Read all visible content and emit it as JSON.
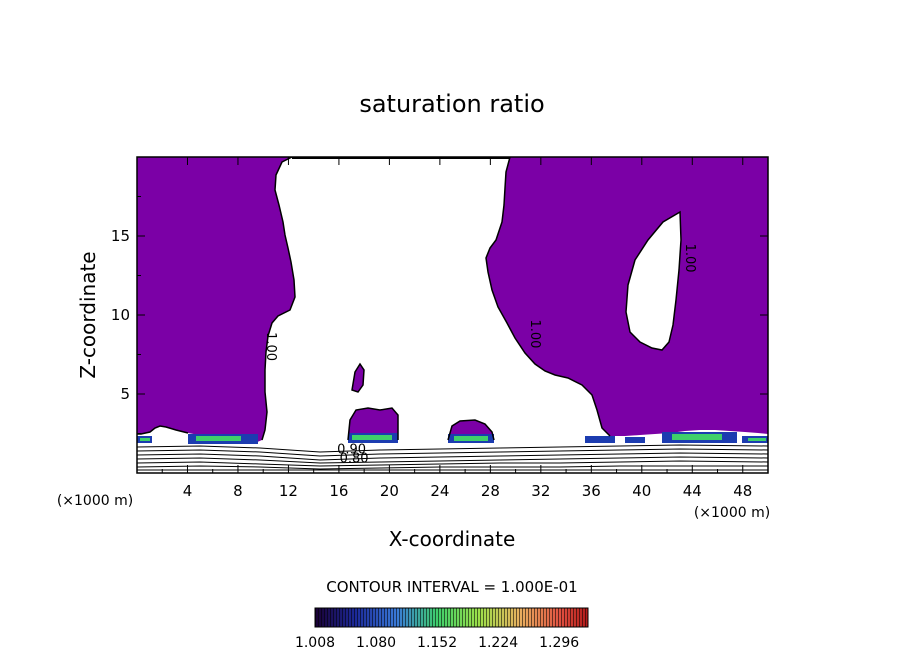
{
  "chart_data": {
    "type": "contour",
    "title": "saturation ratio",
    "xlabel": "X-coordinate",
    "ylabel": "Z-coordinate",
    "x_unit_label": "(×1000 m)",
    "x_unit_label_right": "(×1000 m)",
    "xlim": [
      0,
      50
    ],
    "ylim": [
      0,
      20
    ],
    "x_ticks": [
      4,
      8,
      12,
      16,
      20,
      24,
      28,
      32,
      36,
      40,
      44,
      48
    ],
    "y_ticks": [
      5,
      10,
      15
    ],
    "contour_interval_text": "CONTOUR INTERVAL = 1.000E-01",
    "contour_labels": [
      {
        "text": "1.00",
        "x": 10.3,
        "y": 8.0
      },
      {
        "text": "1.00",
        "x": 31.2,
        "y": 8.8
      },
      {
        "text": "1.00",
        "x": 43.5,
        "y": 13.6
      },
      {
        "text": "0.90",
        "x": 17.0,
        "y": 1.25
      },
      {
        "text": "0.80",
        "x": 17.2,
        "y": 0.65
      }
    ],
    "fill_color_above_1": "#7b00a6",
    "colorbar": {
      "ticks": [
        "1.008",
        "1.080",
        "1.152",
        "1.224",
        "1.296"
      ],
      "min": 1.008,
      "max": 1.33
    },
    "features": [
      {
        "name": "supersaturated-region-left",
        "description_level": "S > 1"
      },
      {
        "name": "subsaturated-column-center",
        "description_level": "S < 1"
      },
      {
        "name": "supersaturated-region-right",
        "description_level": "S > 1"
      },
      {
        "name": "subsaturated-lens-right",
        "description_level": "S < 1"
      }
    ]
  }
}
